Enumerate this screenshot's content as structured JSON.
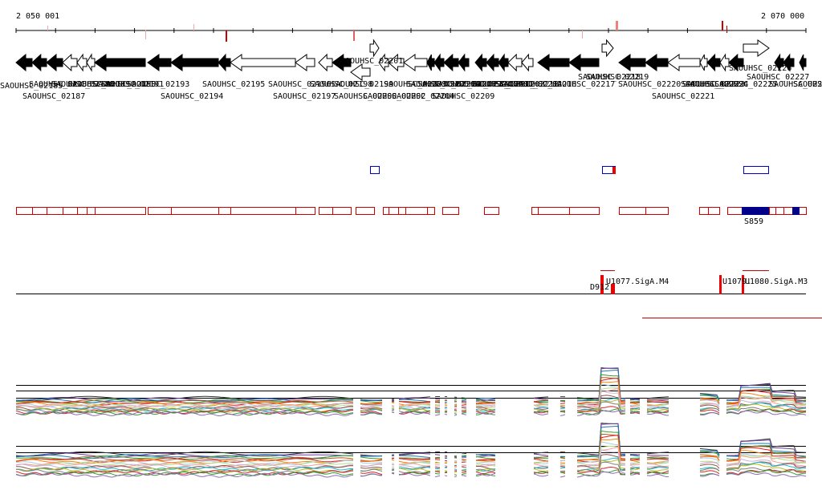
{
  "coordinates": {
    "start_label": "2 050 001",
    "end_label": "2 070 000"
  },
  "colors": {
    "feature_outline": "#cc0000",
    "forward_box": "#0000cc",
    "filled_block": "#000088",
    "red_mark": "#ee0000",
    "pink_mark": "#f2a6a6",
    "text": "#000000"
  },
  "genes": [
    {
      "label": "SAOUHSC_02185",
      "strand": "-",
      "filled": true
    },
    {
      "label": "SAOUHSC_02186",
      "strand": "-",
      "filled": true
    },
    {
      "label": "SAOUHSC_02187",
      "strand": "-",
      "filled": true
    },
    {
      "label": "SAOUHSC_02188",
      "strand": "-",
      "filled": false
    },
    {
      "label": "SAOUHSC_02189",
      "strand": "-",
      "filled": false
    },
    {
      "label": "SAOUHSC_02190",
      "strand": "-",
      "filled": false
    },
    {
      "label": "SAOUHSC_02191",
      "strand": "-",
      "filled": true
    },
    {
      "label": "SAOUHSC_02193",
      "strand": "-",
      "filled": true
    },
    {
      "label": "SAOUHSC_02194",
      "strand": "-",
      "filled": true
    },
    {
      "label": "SAOUHSC_02195",
      "strand": "-",
      "filled": true
    },
    {
      "label": "SAOUHSC_02196",
      "strand": "-",
      "filled": false
    },
    {
      "label": "SAOUHSC_02197",
      "strand": "-",
      "filled": false
    },
    {
      "label": "SAOUHSC_02198",
      "strand": "-",
      "filled": false
    },
    {
      "label": "SAOUHSC_02199",
      "strand": "-",
      "filled": true
    },
    {
      "label": "SAOUHSC_02200",
      "strand": "-",
      "filled": false
    },
    {
      "label": "SAOUHSC_02201",
      "strand": "+",
      "filled": false
    },
    {
      "label": "SAOUHSC_02202",
      "strand": "-",
      "filled": false
    },
    {
      "label": "SAOUHSC_02203",
      "strand": "-",
      "filled": false
    },
    {
      "label": "SAOUHSC_02204",
      "strand": "-",
      "filled": false
    },
    {
      "label": "SAOUHSC_02205",
      "strand": "-",
      "filled": true
    },
    {
      "label": "SAOUHSC_02206",
      "strand": "-",
      "filled": true
    },
    {
      "label": "SAOUHSC_02207",
      "strand": "-",
      "filled": true
    },
    {
      "label": "SAOUHSC_02209",
      "strand": "-",
      "filled": true
    },
    {
      "label": "SAOUHSC_02210",
      "strand": "-",
      "filled": true
    },
    {
      "label": "SAOUHSC_02211",
      "strand": "-",
      "filled": true
    },
    {
      "label": "SAOUHSC_02212",
      "strand": "-",
      "filled": true
    },
    {
      "label": "SAOUHSC_02213",
      "strand": "-",
      "filled": false
    },
    {
      "label": "SAOUHSC_02214",
      "strand": "-",
      "filled": false
    },
    {
      "label": "SAOUHSC_02216",
      "strand": "-",
      "filled": true
    },
    {
      "label": "SAOUHSC_02217",
      "strand": "-",
      "filled": true
    },
    {
      "label": "SAOUHSC_02218",
      "strand": "+",
      "filled": false
    },
    {
      "label": "SAOUHSC_02219",
      "strand": "-",
      "filled": true
    },
    {
      "label": "SAOUHSC_02220",
      "strand": "-",
      "filled": true
    },
    {
      "label": "SAOUHSC_02221",
      "strand": "-",
      "filled": false
    },
    {
      "label": "SAOUHSC_02222",
      "strand": "-",
      "filled": false
    },
    {
      "label": "SAOUHSC_02223",
      "strand": "-",
      "filled": true
    },
    {
      "label": "SAOUHSC_02224",
      "strand": "-",
      "filled": false
    },
    {
      "label": "SAOUHSC_02225",
      "strand": "-",
      "filled": true
    },
    {
      "label": "SAOUHSC_02226",
      "strand": "+",
      "filled": false
    },
    {
      "label": "SAOUHSC_02227",
      "strand": "-",
      "filled": true
    },
    {
      "label": "SAOUHSC_02228",
      "strand": "-",
      "filled": true
    },
    {
      "label": "SAOUHSC_02229",
      "strand": "-",
      "filled": true
    }
  ],
  "feature_labels": {
    "s859": "S859",
    "d912": "D912",
    "u1077": "U1077.SigA.M4",
    "u1079": "U1079.",
    "u1080": "U1080.SigA.M3"
  }
}
